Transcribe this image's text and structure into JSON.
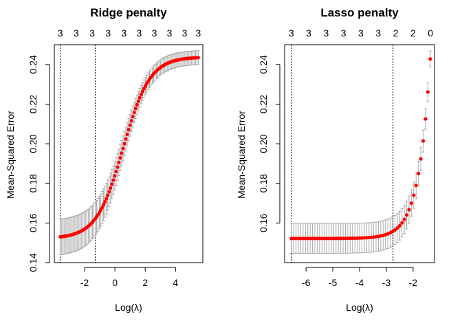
{
  "chart_data": [
    {
      "type": "scatter",
      "title": "Ridge penalty",
      "xlabel": "Log(λ)",
      "ylabel": "Mean-Squared Error",
      "xlim": [
        -4.0,
        5.8
      ],
      "ylim": [
        0.14,
        0.25
      ],
      "x_ticks": [
        -2,
        0,
        2,
        4
      ],
      "y_ticks": [
        0.14,
        0.16,
        0.18,
        0.2,
        0.22,
        0.24
      ],
      "top_axis": {
        "x": [
          -3.6,
          -2.55,
          -1.5,
          -0.45,
          0.6,
          1.6,
          2.6,
          3.6,
          4.6,
          5.5
        ],
        "labels": [
          "3",
          "3",
          "3",
          "3",
          "3",
          "3",
          "3",
          "3",
          "3",
          "3"
        ]
      },
      "vlines": [
        -3.6,
        -1.3
      ],
      "curve": {
        "x_start": -3.6,
        "x_end": 5.5,
        "n": 100,
        "y_low": 0.1522,
        "y_high": 0.2438,
        "center": 0.55,
        "scale": 0.88,
        "err_low": 0.009,
        "err_high": 0.0035
      },
      "point_color": "#ff0000",
      "error_bar_color": "#a9a9a9",
      "grid": false
    },
    {
      "type": "scatter",
      "title": "Lasso penalty",
      "xlabel": "Log(λ)",
      "ylabel": "Mean-Squared Error",
      "xlim": [
        -6.8,
        -1.2
      ],
      "ylim": [
        0.14,
        0.25
      ],
      "x_ticks": [
        -6,
        -5,
        -4,
        -3,
        -2
      ],
      "y_ticks": [
        0.16,
        0.18,
        0.2,
        0.22,
        0.24
      ],
      "top_axis": {
        "x": [
          -6.55,
          -5.9,
          -5.25,
          -4.6,
          -3.95,
          -3.3,
          -2.65,
          -2.0,
          -1.35
        ],
        "labels": [
          "3",
          "3",
          "3",
          "3",
          "3",
          "3",
          "2",
          "2",
          "0"
        ]
      },
      "vlines": [
        -6.55,
        -2.75
      ],
      "curve": {
        "x_start": -6.55,
        "x_end": -1.36,
        "n": 60,
        "y_low": 0.1522,
        "y_high": 0.2428,
        "err_low": 0.0075,
        "err_high": 0.004
      },
      "point_color": "#ff0000",
      "error_bar_color": "#a9a9a9",
      "grid": false
    }
  ]
}
